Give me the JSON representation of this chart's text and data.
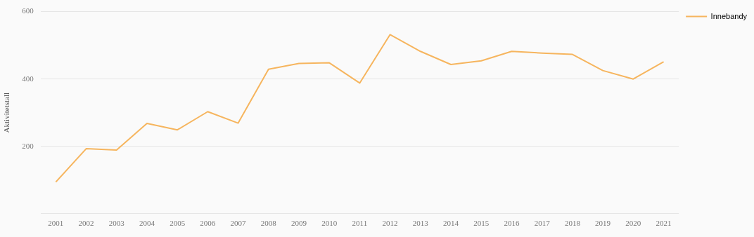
{
  "chart_data": {
    "type": "line",
    "ylabel": "Aktivitetstall",
    "categories": [
      "2001",
      "2002",
      "2003",
      "2004",
      "2005",
      "2006",
      "2007",
      "2008",
      "2009",
      "2010",
      "2011",
      "2012",
      "2013",
      "2014",
      "2015",
      "2016",
      "2017",
      "2018",
      "2019",
      "2020",
      "2021"
    ],
    "series": [
      {
        "name": "Innebandy",
        "color": "#f6b55e",
        "values": [
          94,
          193,
          189,
          268,
          249,
          303,
          269,
          429,
          446,
          448,
          388,
          532,
          482,
          443,
          454,
          482,
          477,
          473,
          425,
          400,
          451
        ]
      }
    ],
    "ylim": [
      0,
      600
    ],
    "yticks": [
      {
        "value": 0,
        "label": null
      },
      200,
      400,
      600
    ],
    "grid": "y",
    "legend": "top right",
    "marker": "none"
  }
}
